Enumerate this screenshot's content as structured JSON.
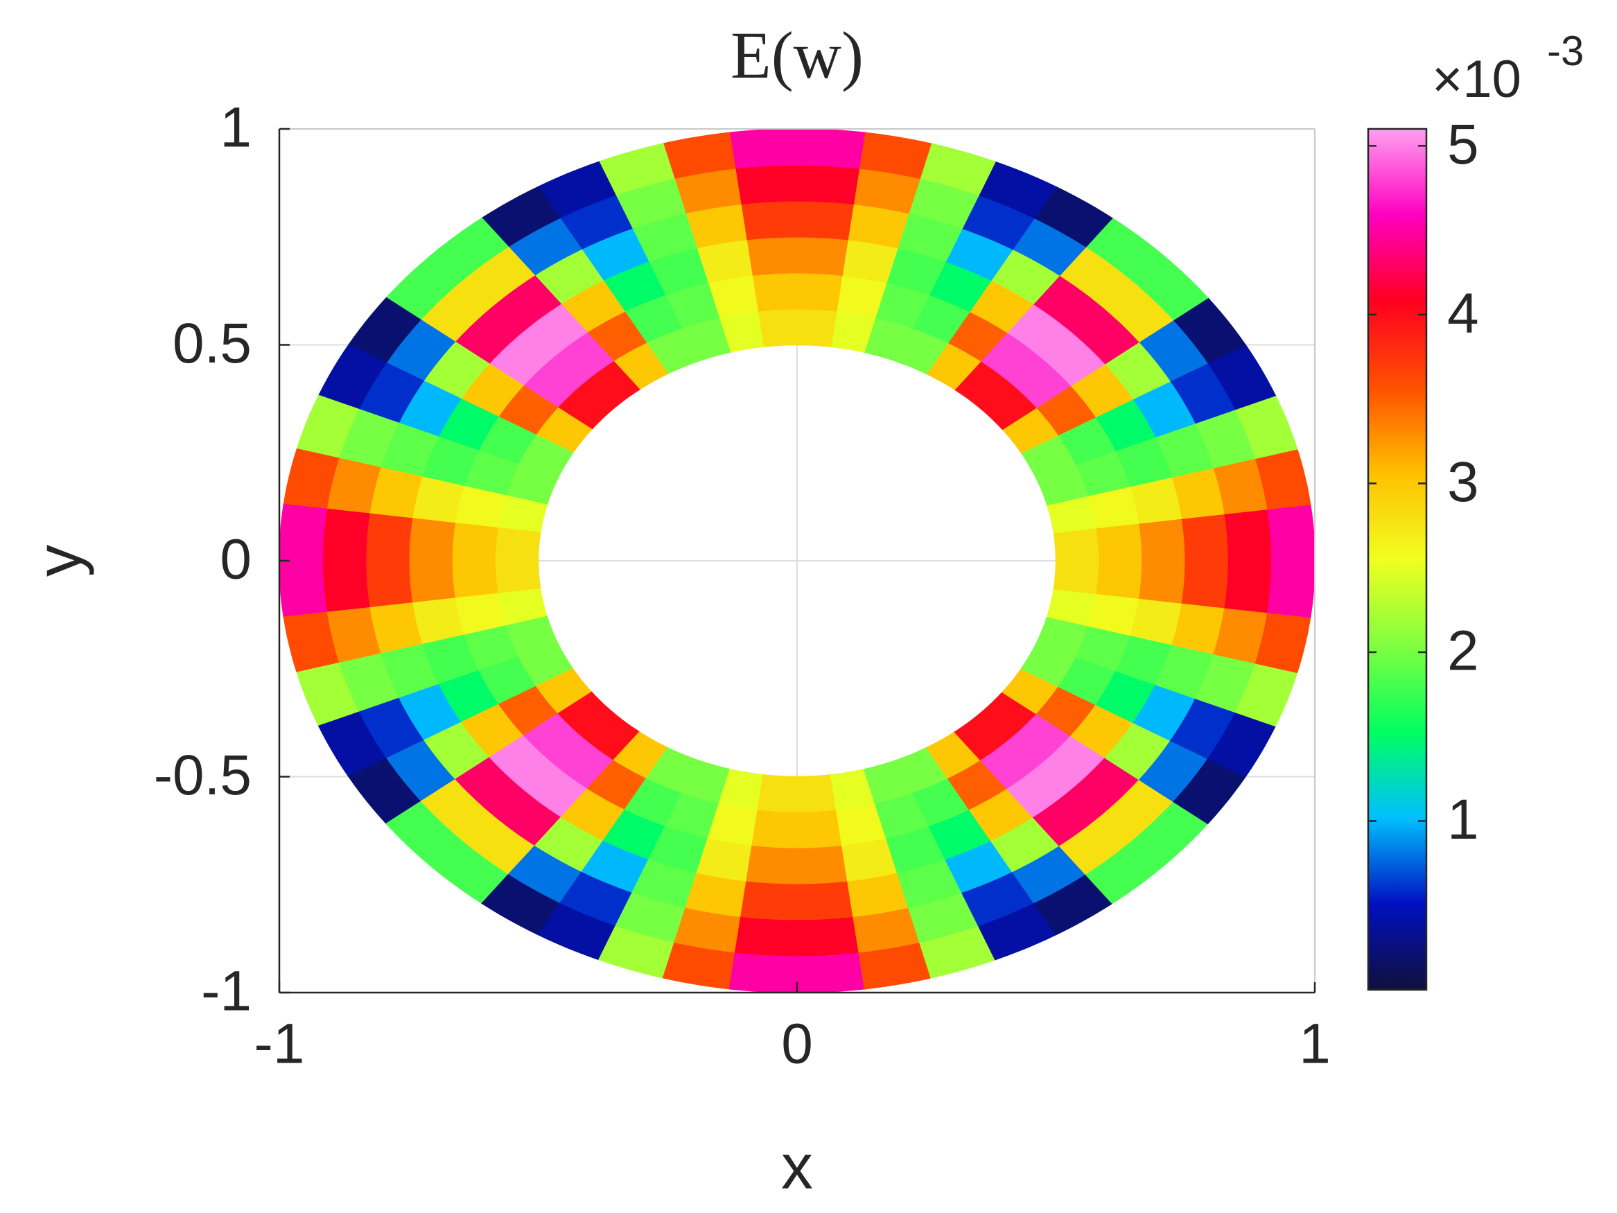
{
  "chart_data": {
    "type": "polar-heatmap",
    "title": "E(w)",
    "x_label": "x",
    "y_label": "y",
    "xlim": [
      -1,
      1
    ],
    "ylim": [
      -1,
      1
    ],
    "xticks": [
      -1,
      0,
      1
    ],
    "yticks": [
      -1,
      -0.5,
      0,
      0.5,
      1
    ],
    "grid": true,
    "r_bins": [
      0.5,
      0.5833,
      0.6667,
      0.75,
      0.8333,
      0.9167,
      1
    ],
    "values": [
      [
        2.8,
        2.5,
        2,
        2,
        3,
        4,
        4,
        3,
        2,
        2,
        2.5,
        2.8,
        2.8,
        2.5,
        2,
        2,
        3,
        4,
        4,
        3,
        2,
        2,
        2.5,
        2.8,
        2.8,
        2.5,
        2,
        2,
        3,
        4,
        4,
        3,
        2,
        2,
        2.5,
        2.8,
        2.8,
        2.5,
        2,
        2,
        3,
        4,
        4,
        3,
        2,
        2,
        2.5,
        2.8
      ],
      [
        3,
        2.6,
        1.9,
        1.8,
        3.5,
        4.8,
        4.8,
        3.5,
        1.8,
        1.9,
        2.6,
        3,
        3,
        2.6,
        1.9,
        1.8,
        3.5,
        4.8,
        4.8,
        3.5,
        1.8,
        1.9,
        2.6,
        3,
        3,
        2.6,
        1.9,
        1.8,
        3.5,
        4.8,
        4.8,
        3.5,
        1.8,
        1.9,
        2.6,
        3,
        3,
        2.6,
        1.9,
        1.8,
        3.5,
        4.8,
        4.8,
        3.5,
        1.8,
        1.9,
        2.6,
        3
      ],
      [
        3.3,
        2.7,
        1.8,
        1.5,
        3,
        5,
        5,
        3,
        1.5,
        1.8,
        2.7,
        3.3,
        3.3,
        2.7,
        1.8,
        1.5,
        3,
        5,
        5,
        3,
        1.5,
        1.8,
        2.7,
        3.3,
        3.3,
        2.7,
        1.8,
        1.5,
        3,
        5,
        5,
        3,
        1.5,
        1.8,
        2.7,
        3.3,
        3.3,
        2.7,
        1.8,
        1.5,
        3,
        5,
        5,
        3,
        1.5,
        1.8,
        2.7,
        3.3
      ],
      [
        3.7,
        3,
        1.9,
        1,
        2.2,
        4.3,
        4.3,
        2.2,
        1,
        1.9,
        3,
        3.7,
        3.7,
        3,
        1.9,
        1,
        2.2,
        4.3,
        4.3,
        2.2,
        1,
        1.9,
        3,
        3.7,
        3.7,
        3,
        1.9,
        1,
        2.2,
        4.3,
        4.3,
        2.2,
        1,
        1.9,
        3,
        3.7,
        3.7,
        3,
        1.9,
        1,
        2.2,
        4.3,
        4.3,
        2.2,
        1,
        1.9,
        3,
        3.7
      ],
      [
        4.1,
        3.3,
        2,
        0.6,
        0.8,
        2.8,
        2.8,
        0.8,
        0.6,
        2,
        3.3,
        4.1,
        4.1,
        3.3,
        2,
        0.6,
        0.8,
        2.8,
        2.8,
        0.8,
        0.6,
        2,
        3.3,
        4.1,
        4.1,
        3.3,
        2,
        0.6,
        0.8,
        2.8,
        2.8,
        0.8,
        0.6,
        2,
        3.3,
        4.1,
        4.1,
        3.3,
        2,
        0.6,
        0.8,
        2.8,
        2.8,
        0.8,
        0.6,
        2,
        3.3,
        4.1
      ],
      [
        4.5,
        3.6,
        2.2,
        0.4,
        0.2,
        1.8,
        1.8,
        0.2,
        0.4,
        2.2,
        3.6,
        4.5,
        4.5,
        3.6,
        2.2,
        0.4,
        0.2,
        1.8,
        1.8,
        0.2,
        0.4,
        2.2,
        3.6,
        4.5,
        4.5,
        3.6,
        2.2,
        0.4,
        0.2,
        1.8,
        1.8,
        0.2,
        0.4,
        2.2,
        3.6,
        4.5,
        4.5,
        3.6,
        2.2,
        0.4,
        0.2,
        1.8,
        1.8,
        0.2,
        0.4,
        2.2,
        3.6,
        4.5
      ]
    ],
    "colorbar": {
      "lim": [
        0,
        5.1
      ],
      "ticks": [
        1,
        2,
        3,
        4,
        5
      ],
      "exponent_base": "×10",
      "exponent": "-3",
      "colormap": [
        "#10103a",
        "#0010c0",
        "#00c0ff",
        "#00ff60",
        "#80ff40",
        "#f0ff20",
        "#ffc000",
        "#ff5000",
        "#ff0020",
        "#ff00c0",
        "#ffa0f0"
      ]
    }
  }
}
